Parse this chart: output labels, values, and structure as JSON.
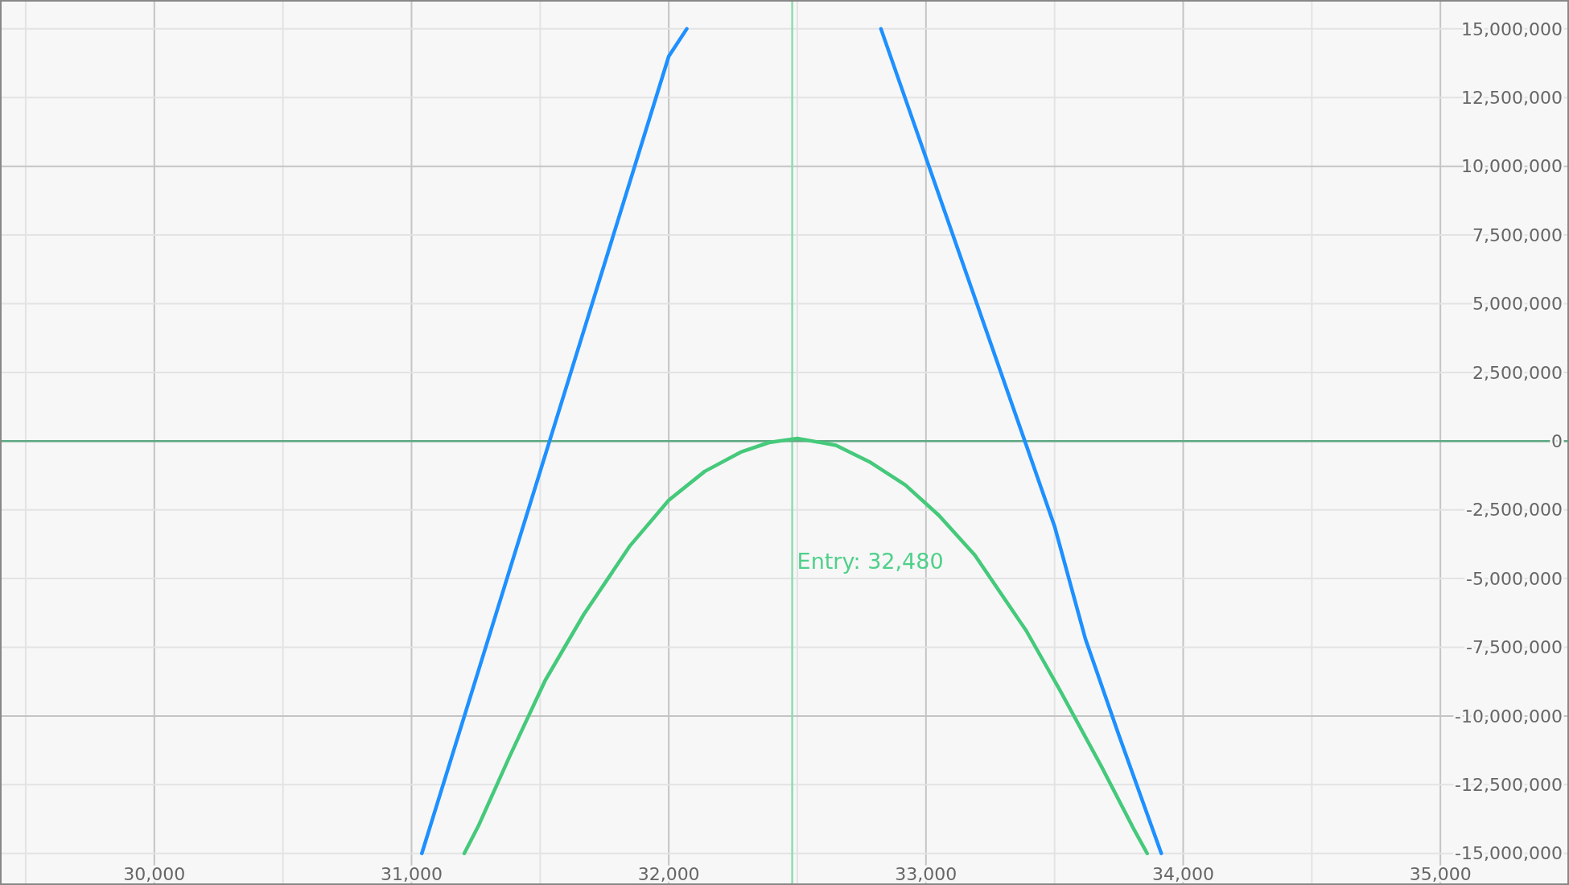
{
  "chart_data": {
    "type": "line",
    "xlim": [
      29400,
      35500
    ],
    "ylim": [
      -16150000,
      16050000
    ],
    "xticks": [
      {
        "value": 30000,
        "label": "30,000"
      },
      {
        "value": 31000,
        "label": "31,000"
      },
      {
        "value": 32000,
        "label": "32,000"
      },
      {
        "value": 33000,
        "label": "33,000"
      },
      {
        "value": 34000,
        "label": "34,000"
      },
      {
        "value": 35000,
        "label": "35,000"
      }
    ],
    "yticks": [
      {
        "value": -15000000,
        "label": "-15,000,000"
      },
      {
        "value": -12500000,
        "label": "-12,500,000"
      },
      {
        "value": -10000000,
        "label": "-10,000,000"
      },
      {
        "value": -7500000,
        "label": "-7,500,000"
      },
      {
        "value": -5000000,
        "label": "-5,000,000"
      },
      {
        "value": -2500000,
        "label": "-2,500,000"
      },
      0,
      {
        "value": 2500000,
        "label": "2,500,000"
      },
      {
        "value": 5000000,
        "label": "5,000,000"
      },
      {
        "value": 7500000,
        "label": "7,500,000"
      },
      {
        "value": 10000000,
        "label": "10,000,000"
      },
      {
        "value": 12500000,
        "label": "12,500,000"
      },
      {
        "value": 15000000,
        "label": "15,000,000"
      }
    ],
    "grid": true,
    "line_style": "solid",
    "marker": "none",
    "series": [
      {
        "color": "#1e90ff",
        "x": [
          31040,
          32000,
          32070,
          32460,
          32825,
          33500,
          33620,
          33750,
          33915
        ],
        "values": [
          -15000000,
          14000000,
          15000000,
          null,
          15000000,
          -3100000,
          -7200000,
          -10700000,
          -15000000
        ]
      },
      {
        "color": "#45c97a",
        "x": [
          31205,
          31260,
          31380,
          31520,
          31670,
          31850,
          32000,
          32140,
          32280,
          32390,
          32500,
          32650,
          32780,
          32920,
          33050,
          33190,
          33390,
          33520,
          33680,
          33810,
          33860
        ],
        "values": [
          -15000000,
          -14000000,
          -11500000,
          -8700000,
          -6300000,
          -3800000,
          -2150000,
          -1100000,
          -400000,
          -50000,
          100000,
          -150000,
          -750000,
          -1600000,
          -2700000,
          -4150000,
          -6900000,
          -9050000,
          -11800000,
          -14150000,
          -15000000
        ]
      }
    ],
    "ref_lines": [
      {
        "axis": "x",
        "value": 32480,
        "label": "Entry: 32,480",
        "color": "#8fdcb0"
      },
      {
        "axis": "y",
        "value": 0,
        "color": "#5fa884"
      }
    ]
  }
}
